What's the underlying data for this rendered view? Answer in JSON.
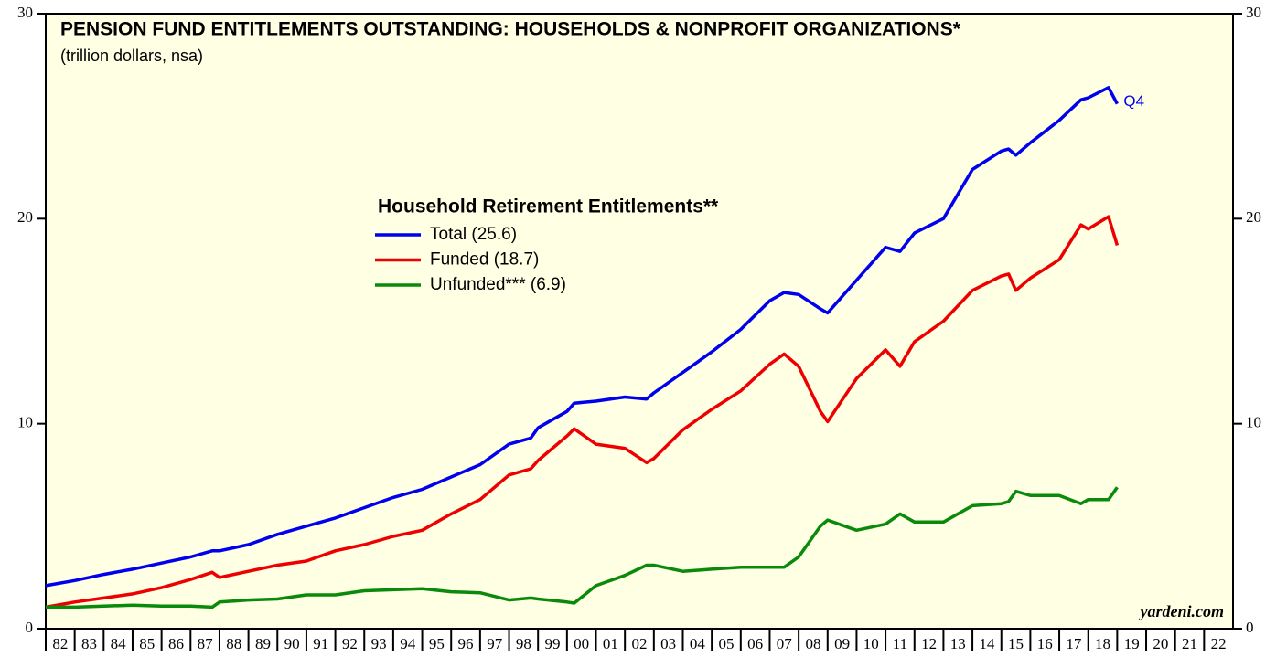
{
  "chart_data": {
    "type": "line",
    "title": "PENSION FUND ENTITLEMENTS OUTSTANDING: HOUSEHOLDS & NONPROFIT ORGANIZATIONS*",
    "subtitle": "(trillion dollars, nsa)",
    "legend_title": "Household Retirement Entitlements**",
    "annotation": "Q4",
    "source": "yardeni.com",
    "x": [
      1982,
      1983,
      1984,
      1985,
      1986,
      1987,
      1987.75,
      1988,
      1989,
      1990,
      1991,
      1992,
      1993,
      1994,
      1995,
      1996,
      1997,
      1998,
      1998.75,
      1999,
      2000,
      2000.25,
      2001,
      2002,
      2002.75,
      2003,
      2004,
      2005,
      2006,
      2007,
      2007.5,
      2008,
      2008.75,
      2009,
      2010,
      2011,
      2011.5,
      2012,
      2013,
      2014,
      2015,
      2015.25,
      2015.5,
      2016,
      2017,
      2017.75,
      2018,
      2018.7,
      2019
    ],
    "series": [
      {
        "name": "Total (25.6)",
        "color": "#0000ee",
        "values": [
          2.1,
          2.35,
          2.65,
          2.9,
          3.2,
          3.5,
          3.8,
          3.8,
          4.1,
          4.6,
          5.0,
          5.4,
          5.9,
          6.4,
          6.8,
          7.4,
          8.0,
          9.0,
          9.3,
          9.8,
          10.6,
          11.0,
          11.1,
          11.3,
          11.2,
          11.5,
          12.5,
          13.5,
          14.6,
          16.0,
          16.4,
          16.3,
          15.6,
          15.4,
          17.0,
          18.6,
          18.4,
          19.3,
          20.0,
          22.4,
          23.3,
          23.4,
          23.1,
          23.7,
          24.8,
          25.8,
          25.9,
          26.4,
          25.6
        ]
      },
      {
        "name": "Funded (18.7)",
        "color": "#ee0000",
        "values": [
          1.05,
          1.3,
          1.5,
          1.7,
          2.0,
          2.4,
          2.75,
          2.5,
          2.8,
          3.1,
          3.3,
          3.8,
          4.1,
          4.5,
          4.8,
          5.6,
          6.3,
          7.5,
          7.8,
          8.2,
          9.4,
          9.75,
          9.0,
          8.8,
          8.1,
          8.3,
          9.7,
          10.7,
          11.6,
          12.9,
          13.4,
          12.8,
          10.6,
          10.1,
          12.2,
          13.6,
          12.8,
          14.0,
          15.0,
          16.5,
          17.2,
          17.3,
          16.5,
          17.1,
          18.0,
          19.7,
          19.5,
          20.1,
          18.7
        ]
      },
      {
        "name": "Unfunded*** (6.9)",
        "color": "#0a8a0a",
        "values": [
          1.05,
          1.05,
          1.1,
          1.15,
          1.1,
          1.1,
          1.05,
          1.3,
          1.4,
          1.45,
          1.65,
          1.65,
          1.85,
          1.9,
          1.95,
          1.8,
          1.75,
          1.4,
          1.5,
          1.45,
          1.3,
          1.25,
          2.1,
          2.6,
          3.1,
          3.1,
          2.8,
          2.9,
          3.0,
          3.0,
          3.0,
          3.5,
          5.0,
          5.3,
          4.8,
          5.1,
          5.6,
          5.2,
          5.2,
          6.0,
          6.1,
          6.2,
          6.7,
          6.5,
          6.5,
          6.1,
          6.3,
          6.3,
          6.9
        ]
      }
    ],
    "xlim": [
      1982,
      2023
    ],
    "xticks": [
      {
        "value": 1982.5,
        "label": "82"
      },
      {
        "value": 1983.5,
        "label": "83"
      },
      {
        "value": 1984.5,
        "label": "84"
      },
      {
        "value": 1985.5,
        "label": "85"
      },
      {
        "value": 1986.5,
        "label": "86"
      },
      {
        "value": 1987.5,
        "label": "87"
      },
      {
        "value": 1988.5,
        "label": "88"
      },
      {
        "value": 1989.5,
        "label": "89"
      },
      {
        "value": 1990.5,
        "label": "90"
      },
      {
        "value": 1991.5,
        "label": "91"
      },
      {
        "value": 1992.5,
        "label": "92"
      },
      {
        "value": 1993.5,
        "label": "93"
      },
      {
        "value": 1994.5,
        "label": "94"
      },
      {
        "value": 1995.5,
        "label": "95"
      },
      {
        "value": 1996.5,
        "label": "96"
      },
      {
        "value": 1997.5,
        "label": "97"
      },
      {
        "value": 1998.5,
        "label": "98"
      },
      {
        "value": 1999.5,
        "label": "99"
      },
      {
        "value": 2000.5,
        "label": "00"
      },
      {
        "value": 2001.5,
        "label": "01"
      },
      {
        "value": 2002.5,
        "label": "02"
      },
      {
        "value": 2003.5,
        "label": "03"
      },
      {
        "value": 2004.5,
        "label": "04"
      },
      {
        "value": 2005.5,
        "label": "05"
      },
      {
        "value": 2006.5,
        "label": "06"
      },
      {
        "value": 2007.5,
        "label": "07"
      },
      {
        "value": 2008.5,
        "label": "08"
      },
      {
        "value": 2009.5,
        "label": "09"
      },
      {
        "value": 2010.5,
        "label": "10"
      },
      {
        "value": 2011.5,
        "label": "11"
      },
      {
        "value": 2012.5,
        "label": "12"
      },
      {
        "value": 2013.5,
        "label": "13"
      },
      {
        "value": 2014.5,
        "label": "14"
      },
      {
        "value": 2015.5,
        "label": "15"
      },
      {
        "value": 2016.5,
        "label": "16"
      },
      {
        "value": 2017.5,
        "label": "17"
      },
      {
        "value": 2018.5,
        "label": "18"
      },
      {
        "value": 2019.5,
        "label": "19"
      },
      {
        "value": 2020.5,
        "label": "20"
      },
      {
        "value": 2021.5,
        "label": "21"
      },
      {
        "value": 2022.5,
        "label": "22"
      }
    ],
    "ylim": [
      0,
      30
    ],
    "yticks": [
      0,
      10,
      20,
      30
    ]
  }
}
